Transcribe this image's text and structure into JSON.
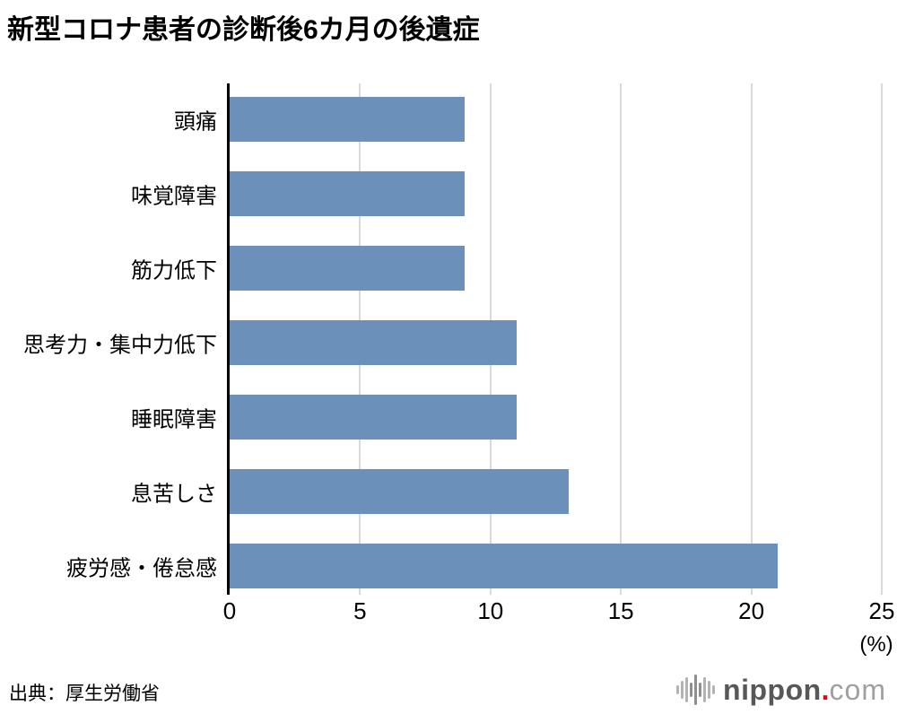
{
  "title": "新型コロナ患者の診断後6カ月の後遺症",
  "chart_data": {
    "type": "bar",
    "orientation": "horizontal",
    "title": "新型コロナ患者の診断後6カ月の後遺症",
    "categories": [
      "頭痛",
      "味覚障害",
      "筋力低下",
      "思考力・集中力低下",
      "睡眠障害",
      "息苦しさ",
      "疲労感・倦怠感"
    ],
    "values": [
      9,
      9,
      9,
      11,
      11,
      13,
      21
    ],
    "xlabel": "(%)",
    "ylabel": "",
    "xlim": [
      0,
      25
    ],
    "xticks": [
      0,
      5,
      10,
      15,
      20,
      25
    ],
    "grid": true,
    "legend": false,
    "bar_color": "#6b90ba",
    "gridline_color": "#d9d9d9",
    "axis_color": "#000000"
  },
  "footer": {
    "source": "出典：厚生労働省",
    "logo": {
      "icon": "waveform-icon",
      "name": "nippon",
      "dot": ".",
      "tld": "com",
      "name_color": "#595757",
      "dot_color": "#e60012",
      "tld_color": "#9fa0a0",
      "wave_color": "#b3b3b3",
      "wave_mid_color": "#8f8f8f"
    }
  }
}
